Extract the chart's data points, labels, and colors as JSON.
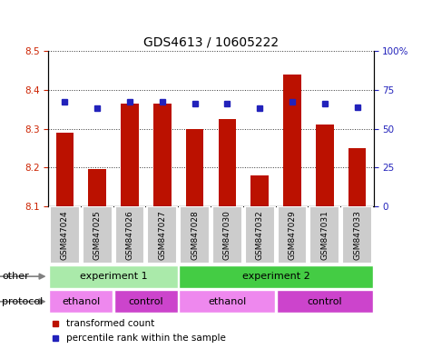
{
  "title": "GDS4613 / 10605222",
  "samples": [
    "GSM847024",
    "GSM847025",
    "GSM847026",
    "GSM847027",
    "GSM847028",
    "GSM847030",
    "GSM847032",
    "GSM847029",
    "GSM847031",
    "GSM847033"
  ],
  "transformed_counts": [
    8.29,
    8.195,
    8.365,
    8.365,
    8.3,
    8.325,
    8.18,
    8.44,
    8.31,
    8.25
  ],
  "percentile_ranks": [
    67,
    63,
    67,
    67,
    66,
    66,
    63,
    67,
    66,
    64
  ],
  "ylim_left": [
    8.1,
    8.5
  ],
  "ylim_right": [
    0,
    100
  ],
  "yticks_left": [
    8.1,
    8.2,
    8.3,
    8.4,
    8.5
  ],
  "yticks_right_vals": [
    0,
    25,
    50,
    75,
    100
  ],
  "yticks_right_labels": [
    "0",
    "25",
    "50",
    "75",
    "100%"
  ],
  "bar_color": "#bb1100",
  "dot_color": "#2222bb",
  "bar_bottom": 8.1,
  "bar_width": 0.55,
  "dot_size": 5,
  "groups_other": [
    {
      "label": "experiment 1",
      "start": 0,
      "end": 4,
      "color": "#aaeaaa"
    },
    {
      "label": "experiment 2",
      "start": 4,
      "end": 10,
      "color": "#44cc44"
    }
  ],
  "groups_protocol": [
    {
      "label": "ethanol",
      "start": 0,
      "end": 2,
      "color": "#ee88ee"
    },
    {
      "label": "control",
      "start": 2,
      "end": 4,
      "color": "#cc44cc"
    },
    {
      "label": "ethanol",
      "start": 4,
      "end": 7,
      "color": "#ee88ee"
    },
    {
      "label": "control",
      "start": 7,
      "end": 10,
      "color": "#cc44cc"
    }
  ],
  "row_labels": [
    "other",
    "protocol"
  ],
  "legend_items": [
    {
      "label": "transformed count",
      "color": "#bb1100"
    },
    {
      "label": "percentile rank within the sample",
      "color": "#2222bb"
    }
  ],
  "sample_bg_color": "#cccccc",
  "sample_border_color": "#ffffff",
  "gridline_color": "#333333",
  "gridline_style": "dotted",
  "left_tick_color": "#cc2200",
  "right_tick_color": "#2222bb",
  "title_fontsize": 10,
  "tick_fontsize": 7.5,
  "sample_fontsize": 6.5,
  "group_fontsize": 8,
  "row_label_fontsize": 8,
  "legend_fontsize": 7.5
}
